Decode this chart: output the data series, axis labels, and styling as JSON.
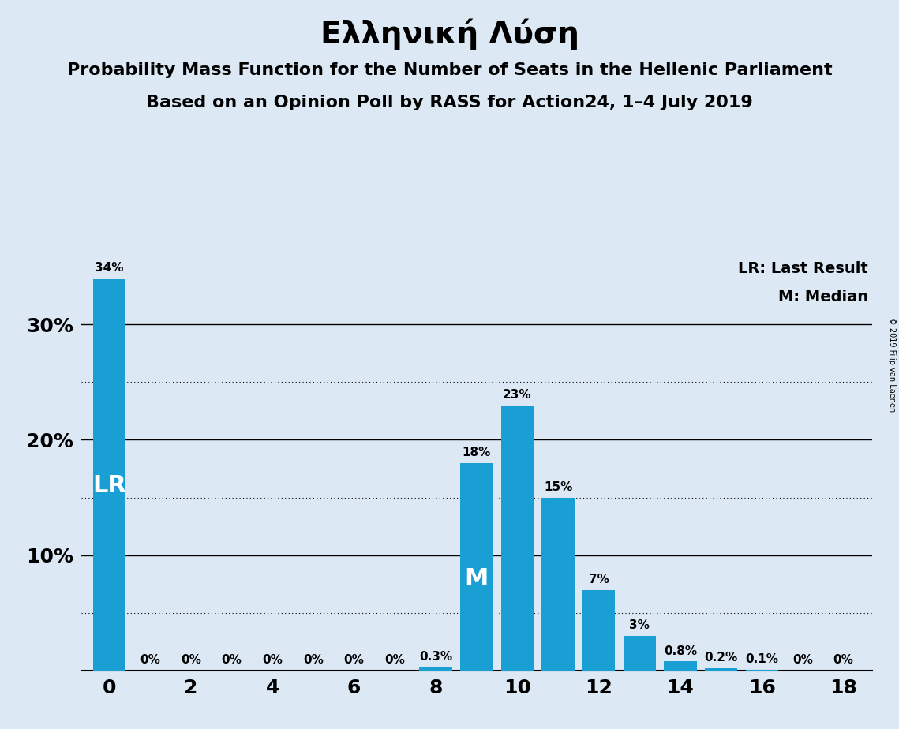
{
  "title": "Ελληνική Λύση",
  "subtitle1": "Probability Mass Function for the Number of Seats in the Hellenic Parliament",
  "subtitle2": "Based on an Opinion Poll by RASS for Action24, 1–4 July 2019",
  "copyright": "© 2019 Filip van Laenen",
  "lr_label": "LR",
  "m_label": "M",
  "legend_lr": "LR: Last Result",
  "legend_m": "M: Median",
  "seats": [
    0,
    1,
    2,
    3,
    4,
    5,
    6,
    7,
    8,
    9,
    10,
    11,
    12,
    13,
    14,
    15,
    16,
    17,
    18
  ],
  "probabilities": [
    34,
    0,
    0,
    0,
    0,
    0,
    0,
    0,
    0.3,
    18,
    23,
    15,
    7,
    3,
    0.8,
    0.2,
    0.1,
    0,
    0
  ],
  "bar_color": "#1a9fd4",
  "background_color": "#dce9f5",
  "lr_seat": 0,
  "median_seat": 9,
  "ylim": [
    0,
    36
  ],
  "solid_grid": [
    10,
    20,
    30
  ],
  "dotted_grid": [
    5,
    15,
    25
  ],
  "title_fontsize": 28,
  "subtitle_fontsize": 16,
  "bar_label_fontsize": 11,
  "axis_tick_fontsize": 18,
  "legend_fontsize": 14,
  "lr_m_fontsize": 22,
  "copyright_fontsize": 7
}
